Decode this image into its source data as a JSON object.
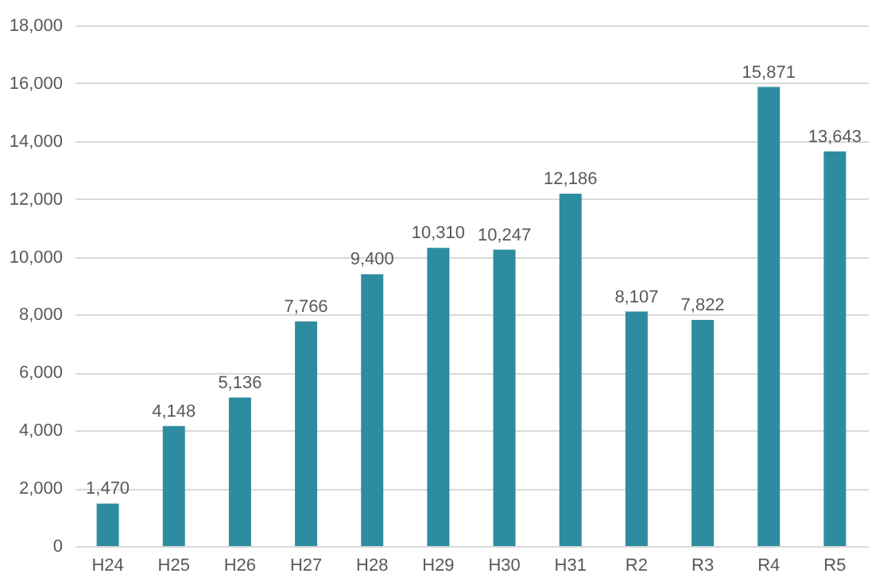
{
  "chart_data": {
    "type": "bar",
    "categories": [
      "H24",
      "H25",
      "H26",
      "H27",
      "H28",
      "H29",
      "H30",
      "H31",
      "R2",
      "R3",
      "R4",
      "R5"
    ],
    "values": [
      1470,
      4148,
      5136,
      7766,
      9400,
      10310,
      10247,
      12186,
      8107,
      7822,
      15871,
      13643
    ],
    "color": "#2e8ca0",
    "ylim": [
      0,
      18000
    ],
    "yticks": [
      0,
      {
        "value": 2000,
        "label": "2,000"
      },
      {
        "value": 4000,
        "label": "4,000"
      },
      {
        "value": 6000,
        "label": "6,000"
      },
      {
        "value": 8000,
        "label": "8,000"
      },
      {
        "value": 10000,
        "label": "10,000"
      },
      {
        "value": 12000,
        "label": "12,000"
      },
      {
        "value": 14000,
        "label": "14,000"
      },
      {
        "value": 16000,
        "label": "16,000"
      },
      {
        "value": 18000,
        "label": "18,000"
      }
    ],
    "grid": "y",
    "value_labels": [
      "1,470",
      "4,148",
      "5,136",
      "7,766",
      "9,400",
      "10,310",
      "10,247",
      "12,186",
      "8,107",
      "7,822",
      "15,871",
      "13,643"
    ]
  }
}
